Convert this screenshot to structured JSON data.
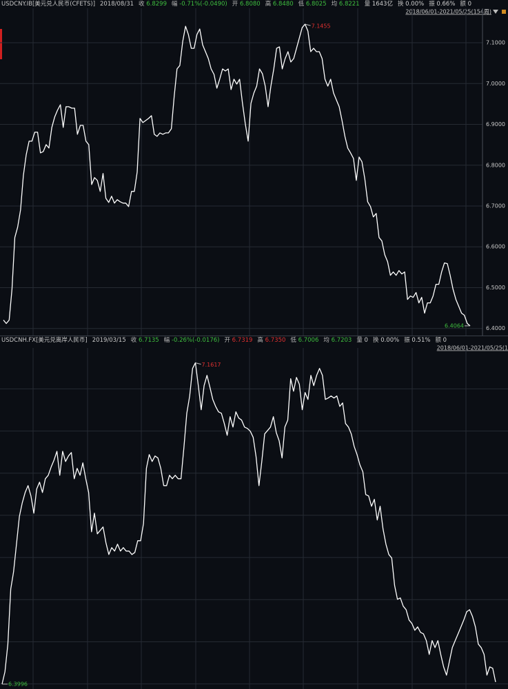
{
  "chart_data": [
    {
      "type": "line",
      "title": "USDCNY.IB[美元兑人民币(CFETS)]",
      "date": "2018/08/31",
      "quote": [
        {
          "label": "收",
          "value": "6.8299",
          "color": "#3fbf3f"
        },
        {
          "label": "幅",
          "value": "-0.71%(-0.0490)",
          "color": "#3fbf3f"
        },
        {
          "label": "开",
          "value": "6.8080",
          "color": "#3fbf3f"
        },
        {
          "label": "高",
          "value": "6.8480",
          "color": "#3fbf3f"
        },
        {
          "label": "低",
          "value": "6.8025",
          "color": "#3fbf3f"
        },
        {
          "label": "均",
          "value": "6.8221",
          "color": "#3fbf3f"
        },
        {
          "label": "量",
          "value": "1643亿",
          "color": "#d0d0d0"
        },
        {
          "label": "换",
          "value": "0.00%",
          "color": "#d0d0d0"
        },
        {
          "label": "振",
          "value": "0.66%",
          "color": "#d0d0d0"
        },
        {
          "label": "额",
          "value": "0",
          "color": "#d0d0d0"
        }
      ],
      "range_label": "2018/06/01-2021/05/25(154周)",
      "color": "#ffffff",
      "high": 7.1455,
      "low": 6.4064,
      "high_color": "#e03030",
      "low_color": "#3fbf3f",
      "ylim": [
        6.386,
        7.171
      ],
      "grid": true,
      "tick_labels": true,
      "yticks": [
        {
          "value": 6.4,
          "label": "6.4000"
        },
        {
          "value": 6.5,
          "label": "6.5000"
        },
        {
          "value": 6.6,
          "label": "6.6000"
        },
        {
          "value": 6.7,
          "label": "6.7000"
        },
        {
          "value": 6.8,
          "label": "6.8000"
        },
        {
          "value": 6.9,
          "label": "6.9000"
        },
        {
          "value": 7.0,
          "label": "7.0000"
        },
        {
          "value": 7.1,
          "label": "7.1000"
        }
      ],
      "values": [
        6.4205,
        6.4121,
        6.4205,
        6.4964,
        6.6228,
        6.6481,
        6.6903,
        6.7746,
        6.8252,
        6.8589,
        6.8589,
        6.8808,
        6.8808,
        6.8302,
        6.8336,
        6.8504,
        6.842,
        6.8926,
        6.9179,
        6.9347,
        6.9482,
        6.8926,
        6.9432,
        6.9432,
        6.9398,
        6.9398,
        6.8757,
        6.8976,
        6.8976,
        6.8589,
        6.8504,
        6.7527,
        6.7695,
        6.7628,
        6.7358,
        6.7796,
        6.7189,
        6.7088,
        6.724,
        6.7071,
        6.7156,
        6.7105,
        6.7071,
        6.7071,
        6.6987,
        6.7358,
        6.7358,
        6.783,
        6.9145,
        6.9044,
        6.9095,
        6.9145,
        6.9213,
        6.8757,
        6.8707,
        6.8791,
        6.8757,
        6.8791,
        6.8791,
        6.8892,
        6.9685,
        7.0359,
        7.0443,
        7.1033,
        7.1404,
        7.1202,
        7.0865,
        7.0865,
        7.1202,
        7.1337,
        7.0949,
        7.0781,
        7.0612,
        7.0359,
        7.0224,
        6.9887,
        7.0106,
        7.0359,
        7.0308,
        7.0359,
        6.9853,
        7.0106,
        6.9988,
        7.0106,
        6.9516,
        6.901,
        6.8589,
        6.9516,
        6.9769,
        6.9938,
        7.0359,
        7.0241,
        6.9938,
        6.9432,
        6.9938,
        7.0359,
        7.0865,
        7.0899,
        7.0359,
        7.0612,
        7.0781,
        7.0528,
        7.0612,
        7.0865,
        7.1118,
        7.1371,
        7.1455,
        7.1286,
        7.0781,
        7.0865,
        7.0781,
        7.0781,
        7.0612,
        7.0106,
        6.9938,
        7.0106,
        6.9769,
        6.96,
        6.9432,
        6.9095,
        6.8707,
        6.842,
        6.8302,
        6.8167,
        6.7628,
        6.8201,
        6.8083,
        6.7662,
        6.7105,
        6.6987,
        6.6734,
        6.6818,
        6.6228,
        6.6144,
        6.5807,
        6.5638,
        6.5301,
        6.5385,
        6.5301,
        6.5419,
        6.5335,
        6.5385,
        6.4711,
        6.4795,
        6.4762,
        6.488,
        6.4627,
        6.4762,
        6.4375,
        6.4627,
        6.4627,
        6.4795,
        6.5082,
        6.5082,
        6.5385,
        6.5605,
        6.5588,
        6.5301,
        6.4964,
        6.4711,
        6.4543,
        6.4375,
        6.4324,
        6.4121,
        6.4064
      ]
    },
    {
      "type": "line",
      "title": "USDCNH.FX[美元兑离岸人民币]",
      "date": "2019/03/15",
      "quote": [
        {
          "label": "收",
          "value": "6.7135",
          "color": "#3fbf3f"
        },
        {
          "label": "幅",
          "value": "-0.26%(-0.0176)",
          "color": "#3fbf3f"
        },
        {
          "label": "开",
          "value": "6.7319",
          "color": "#e03030"
        },
        {
          "label": "高",
          "value": "6.7350",
          "color": "#e03030"
        },
        {
          "label": "低",
          "value": "6.7006",
          "color": "#3fbf3f"
        },
        {
          "label": "均",
          "value": "6.7203",
          "color": "#3fbf3f"
        },
        {
          "label": "量",
          "value": "0",
          "color": "#d0d0d0"
        },
        {
          "label": "换",
          "value": "0.00%",
          "color": "#d0d0d0"
        },
        {
          "label": "振",
          "value": "0.51%",
          "color": "#d0d0d0"
        },
        {
          "label": "额",
          "value": "0",
          "color": "#d0d0d0"
        }
      ],
      "range_label": "2018/06/01-2021/05/25(1",
      "color": "#ffffff",
      "high": 7.1617,
      "low": 6.3996,
      "high_color": "#e03030",
      "low_color": "#3fbf3f",
      "ylim": [
        6.388,
        7.184
      ],
      "grid": true,
      "tick_labels": false,
      "yticks": [
        6.4,
        6.5,
        6.6,
        6.7,
        6.8,
        6.9,
        7.0,
        7.1
      ],
      "values": [
        6.3996,
        6.4291,
        6.4945,
        6.6253,
        6.6662,
        6.7316,
        6.797,
        6.8297,
        6.8542,
        6.8705,
        6.846,
        6.8051,
        6.8624,
        6.8787,
        6.8542,
        6.8869,
        6.8951,
        6.9147,
        6.9311,
        6.9519,
        6.8951,
        6.9519,
        6.9277,
        6.9408,
        6.949,
        6.8869,
        6.9114,
        6.8951,
        6.9245,
        6.8869,
        6.8542,
        6.761,
        6.8051,
        6.7561,
        6.7643,
        6.7724,
        6.7348,
        6.707,
        6.7234,
        6.7152,
        6.7316,
        6.7152,
        6.7234,
        6.7152,
        6.7152,
        6.707,
        6.7119,
        6.7397,
        6.7397,
        6.7806,
        6.9114,
        6.9441,
        6.9277,
        6.9408,
        6.936,
        6.9114,
        6.8705,
        6.8705,
        6.8951,
        6.8869,
        6.8951,
        6.8869,
        6.8869,
        6.9605,
        7.0422,
        7.0831,
        7.1486,
        7.1617,
        7.1076,
        7.0504,
        7.1076,
        7.1321,
        7.1043,
        7.0749,
        7.0585,
        7.0455,
        7.0422,
        7.0177,
        6.9899,
        7.034,
        7.0095,
        7.0455,
        7.0308,
        7.0259,
        7.0095,
        7.0062,
        6.9997,
        6.985,
        6.9392,
        6.8705,
        6.9277,
        6.9932,
        7.0013,
        7.0095,
        7.034,
        6.9964,
        6.9768,
        6.936,
        7.0095,
        7.0259,
        7.124,
        7.0945,
        7.1272,
        7.1109,
        7.0504,
        7.0913,
        7.0749,
        7.1321,
        7.1076,
        7.1321,
        7.1486,
        7.1321,
        7.0749,
        7.0782,
        7.0831,
        7.0782,
        7.0831,
        7.0585,
        7.0667,
        7.0177,
        7.0095,
        6.9932,
        6.9637,
        6.9441,
        6.9196,
        6.9034,
        6.8493,
        6.846,
        6.8215,
        6.8379,
        6.7889,
        6.8215,
        6.7676,
        6.7316,
        6.707,
        6.6989,
        6.6335,
        6.6008,
        6.604,
        6.5844,
        6.5762,
        6.5517,
        6.5435,
        6.5272,
        6.5354,
        6.5223,
        6.519,
        6.5027,
        6.47,
        6.5027,
        6.4863,
        6.5027,
        6.47,
        6.4405,
        6.4209,
        6.4536,
        6.4863,
        6.5027,
        6.519,
        6.5354,
        6.5517,
        6.5713,
        6.5762,
        6.5599,
        6.5354,
        6.4945,
        6.4863,
        6.47,
        6.4209,
        6.4405,
        6.4372,
        6.4045
      ]
    }
  ]
}
